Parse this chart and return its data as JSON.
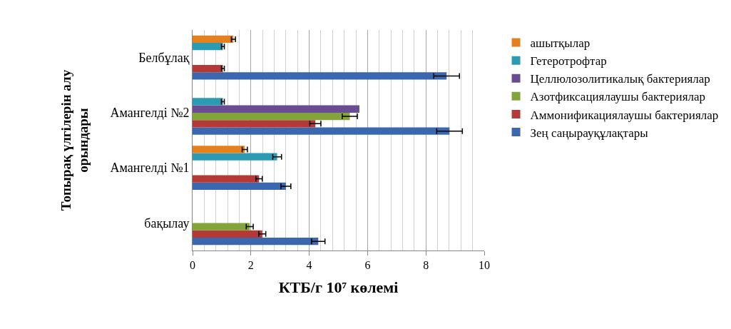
{
  "chart_data": {
    "type": "bar",
    "orientation": "horizontal",
    "xlabel": "КТБ/г 10⁷ көлемі",
    "ylabel": "Топырақ үлгілерін алу\nорындары",
    "categories": [
      "Белбұлақ",
      "Амангелді №2",
      "Амангелді №1",
      "бақылау"
    ],
    "series": [
      {
        "name": "Зең саңырауқұлақтары",
        "color": "#3a67ad",
        "values": [
          8.71,
          8.81,
          3.2,
          4.31
        ],
        "errors": [
          0.44,
          0.44,
          0.17,
          0.23
        ]
      },
      {
        "name": "Аммонификациялаушы бактериялар",
        "color": "#b33a36",
        "values": [
          1.04,
          4.21,
          2.28,
          2.39
        ],
        "errors": [
          0.05,
          0.19,
          0.11,
          0.12
        ]
      },
      {
        "name": "Азотфиксациялаушы бактериялар",
        "color": "#83a43b",
        "values": [
          null,
          5.39,
          null,
          1.96
        ],
        "errors": [
          null,
          0.26,
          null,
          0.12
        ]
      },
      {
        "name": "Целлюлозолитикалық бактериялар",
        "color": "#6a4c92",
        "values": [
          null,
          5.72,
          null,
          null
        ]
      },
      {
        "name": "Гетеротрофтар",
        "color": "#2b9bb3",
        "values": [
          1.04,
          1.04,
          2.9,
          null
        ],
        "errors": [
          0.05,
          0.05,
          0.15,
          null
        ]
      },
      {
        "name": "ашытқылар",
        "color": "#e5801f",
        "values": [
          1.4,
          null,
          1.79,
          null
        ],
        "errors": [
          0.07,
          null,
          0.09,
          null
        ]
      }
    ],
    "xlim": [
      0,
      10
    ],
    "xticks": [
      0,
      2,
      4,
      6,
      8,
      10
    ],
    "grid": "x",
    "legend": "right"
  }
}
